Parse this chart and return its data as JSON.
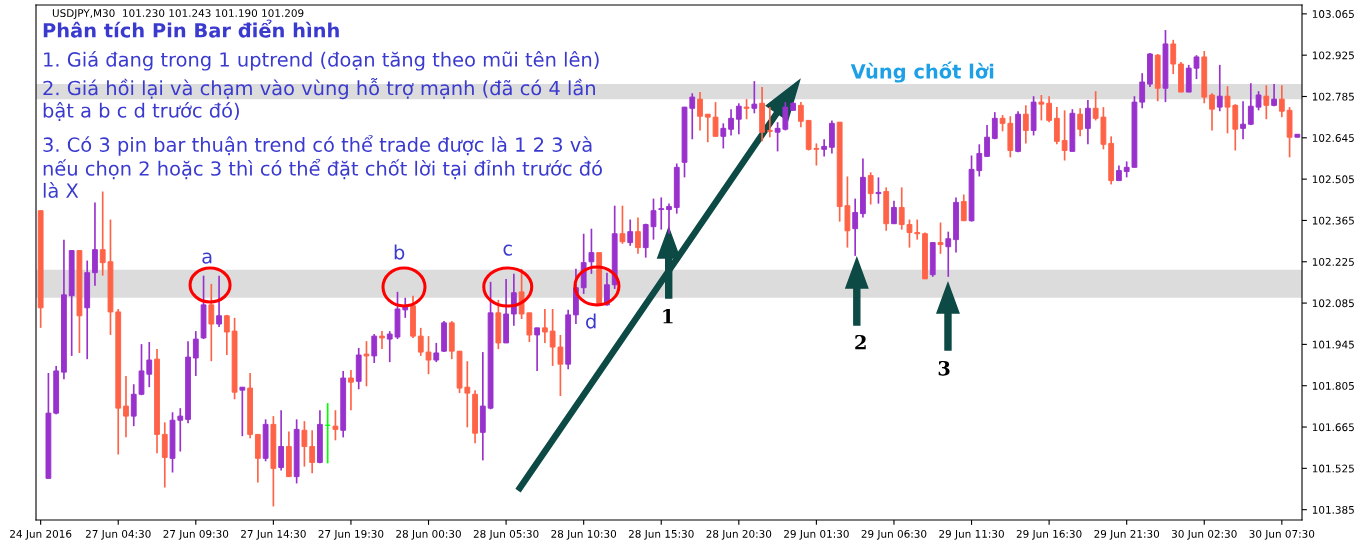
{
  "chart_data": {
    "type": "candlestick",
    "title": "Phân tích Pin Bar điển hình",
    "categories": [
      "24 Jun 2016",
      null,
      null,
      null,
      null,
      null,
      null,
      null,
      null,
      null,
      "27 Jun 04:30",
      null,
      null,
      null,
      null,
      null,
      null,
      null,
      null,
      null,
      "27 Jun 09:30",
      null,
      null,
      null,
      null,
      null,
      null,
      null,
      null,
      null,
      "27 Jun 14:30",
      null,
      null,
      null,
      null,
      null,
      null,
      null,
      null,
      null,
      "27 Jun 19:30",
      null,
      null,
      null,
      null,
      null,
      null,
      null,
      null,
      null,
      "28 Jun 00:30",
      null,
      null,
      null,
      null,
      null,
      null,
      null,
      null,
      null,
      "28 Jun 05:30",
      null,
      null,
      null,
      null,
      null,
      null,
      null,
      null,
      null,
      "28 Jun 10:30",
      null,
      null,
      null,
      null,
      null,
      null,
      null,
      null,
      null,
      "28 Jun 15:30",
      null,
      null,
      null,
      null,
      null,
      null,
      null,
      null,
      null,
      "28 Jun 20:30",
      null,
      null,
      null,
      null,
      null,
      null,
      null,
      null,
      null,
      "29 Jun 01:30",
      null,
      null,
      null,
      null,
      null,
      null,
      null,
      null,
      null,
      "29 Jun 06:30",
      null,
      null,
      null,
      null,
      null,
      null,
      null,
      null,
      null,
      "29 Jun 11:30",
      null,
      null,
      null,
      null,
      null,
      null,
      null,
      null,
      null,
      "29 Jun 16:30",
      null,
      null,
      null,
      null,
      null,
      null,
      null,
      null,
      null,
      "29 Jun 21:30",
      null,
      null,
      null,
      null,
      null,
      null,
      null,
      null,
      null,
      "30 Jun 02:30",
      null,
      null,
      null,
      null,
      null,
      null,
      null,
      null,
      null,
      "30 Jun 07:30",
      null,
      null
    ],
    "ohlc": [
      [
        102.398,
        102.398,
        102.001,
        102.069
      ],
      [
        101.491,
        101.848,
        101.491,
        101.712
      ],
      [
        101.712,
        101.872,
        101.708,
        101.855
      ],
      [
        101.851,
        102.3,
        101.827,
        102.113
      ],
      [
        102.11,
        102.263,
        101.906,
        102.263
      ],
      [
        102.263,
        102.263,
        101.916,
        102.042
      ],
      [
        102.069,
        102.229,
        101.895,
        102.188
      ],
      [
        102.188,
        102.426,
        102.144,
        102.266
      ],
      [
        102.266,
        102.463,
        102.178,
        102.222
      ],
      [
        102.225,
        102.368,
        101.977,
        102.055
      ],
      [
        102.055,
        102.065,
        101.572,
        101.729
      ],
      [
        101.736,
        101.838,
        101.63,
        101.702
      ],
      [
        101.702,
        101.81,
        101.668,
        101.776
      ],
      [
        101.776,
        101.946,
        101.773,
        101.855
      ],
      [
        101.844,
        101.953,
        101.8,
        101.892
      ],
      [
        101.895,
        101.929,
        101.576,
        101.64
      ],
      [
        101.64,
        101.681,
        101.46,
        101.562
      ],
      [
        101.559,
        101.715,
        101.511,
        101.688
      ],
      [
        101.688,
        101.729,
        101.582,
        101.702
      ],
      [
        101.691,
        101.956,
        101.678,
        101.902
      ],
      [
        101.899,
        101.99,
        101.838,
        101.963
      ],
      [
        101.967,
        102.178,
        101.963,
        102.079
      ],
      [
        102.079,
        102.15,
        101.888,
        102.014
      ],
      [
        102.014,
        102.178,
        102.004,
        102.042
      ],
      [
        102.042,
        102.045,
        101.909,
        101.987
      ],
      [
        101.99,
        102.035,
        101.759,
        101.783
      ],
      [
        101.79,
        101.8,
        101.634,
        101.8
      ],
      [
        101.797,
        101.848,
        101.627,
        101.64
      ],
      [
        101.64,
        101.64,
        101.477,
        101.559
      ],
      [
        101.559,
        101.691,
        101.549,
        101.674
      ],
      [
        101.674,
        101.702,
        101.396,
        101.525
      ],
      [
        101.528,
        101.722,
        101.518,
        101.599
      ],
      [
        101.599,
        101.65,
        101.497,
        101.497
      ],
      [
        101.497,
        101.691,
        101.474,
        101.657
      ],
      [
        101.654,
        101.685,
        101.531,
        101.599
      ],
      [
        101.599,
        101.654,
        101.508,
        101.545
      ],
      [
        101.545,
        101.722,
        101.542,
        101.674
      ],
      [
        101.671,
        101.746,
        101.542,
        101.671
      ],
      [
        101.668,
        101.722,
        101.62,
        101.657
      ],
      [
        101.654,
        101.855,
        101.63,
        101.831
      ],
      [
        101.831,
        101.858,
        101.722,
        101.817
      ],
      [
        101.82,
        101.933,
        101.793,
        101.909
      ],
      [
        101.912,
        101.956,
        101.803,
        101.906
      ],
      [
        101.906,
        101.98,
        101.882,
        101.973
      ],
      [
        101.973,
        101.99,
        101.929,
        101.967
      ],
      [
        101.963,
        101.99,
        101.885,
        101.98
      ],
      [
        101.97,
        102.123,
        101.963,
        102.065
      ],
      [
        102.062,
        102.103,
        102.035,
        102.076
      ],
      [
        102.076,
        102.11,
        101.967,
        101.973
      ],
      [
        101.973,
        102.001,
        101.906,
        101.919
      ],
      [
        101.919,
        101.973,
        101.844,
        101.892
      ],
      [
        101.892,
        101.95,
        101.885,
        101.916
      ],
      [
        101.922,
        102.024,
        101.919,
        102.018
      ],
      [
        102.018,
        102.024,
        101.895,
        101.922
      ],
      [
        101.922,
        101.922,
        101.78,
        101.797
      ],
      [
        101.8,
        101.888,
        101.664,
        101.78
      ],
      [
        101.776,
        101.79,
        101.61,
        101.644
      ],
      [
        101.647,
        101.919,
        101.552,
        101.736
      ],
      [
        101.729,
        102.157,
        101.725,
        102.052
      ],
      [
        102.052,
        102.096,
        101.929,
        101.95
      ],
      [
        101.95,
        102.167,
        101.95,
        102.048
      ],
      [
        102.048,
        102.184,
        102.008,
        102.12
      ],
      [
        102.123,
        102.201,
        102.031,
        102.048
      ],
      [
        102.052,
        102.052,
        101.953,
        101.977
      ],
      [
        101.977,
        102.001,
        101.855,
        102.001
      ],
      [
        102.001,
        102.065,
        101.95,
        101.987
      ],
      [
        101.99,
        102.065,
        101.872,
        101.936
      ],
      [
        101.936,
        101.977,
        101.77,
        101.878
      ],
      [
        101.878,
        102.062,
        101.861,
        102.045
      ],
      [
        102.045,
        102.201,
        102.014,
        102.137
      ],
      [
        102.137,
        102.32,
        102.116,
        102.222
      ],
      [
        102.225,
        102.337,
        102.184,
        102.256
      ],
      [
        102.256,
        102.256,
        102.076,
        102.079
      ],
      [
        102.079,
        102.188,
        102.076,
        102.147
      ],
      [
        102.147,
        102.415,
        102.133,
        102.32
      ],
      [
        102.32,
        102.415,
        102.286,
        102.293
      ],
      [
        102.29,
        102.368,
        102.279,
        102.327
      ],
      [
        102.327,
        102.375,
        102.252,
        102.273
      ],
      [
        102.273,
        102.354,
        102.239,
        102.351
      ],
      [
        102.344,
        102.439,
        102.3,
        102.398
      ],
      [
        102.402,
        102.443,
        102.334,
        102.405
      ],
      [
        102.402,
        102.422,
        102.32,
        102.412
      ],
      [
        102.409,
        102.558,
        102.388,
        102.545
      ],
      [
        102.562,
        102.749,
        102.511,
        102.749
      ],
      [
        102.745,
        102.796,
        102.64,
        102.783
      ],
      [
        102.776,
        102.8,
        102.67,
        102.718
      ],
      [
        102.725,
        102.725,
        102.63,
        102.715
      ],
      [
        102.715,
        102.766,
        102.65,
        102.65
      ],
      [
        102.65,
        102.694,
        102.609,
        102.677
      ],
      [
        102.674,
        102.742,
        102.653,
        102.711
      ],
      [
        102.708,
        102.762,
        102.657,
        102.752
      ],
      [
        102.749,
        102.776,
        102.708,
        102.745
      ],
      [
        102.745,
        102.837,
        102.728,
        102.759
      ],
      [
        102.762,
        102.817,
        102.633,
        102.664
      ],
      [
        102.67,
        102.749,
        102.647,
        102.667
      ],
      [
        102.664,
        102.698,
        102.599,
        102.677
      ],
      [
        102.674,
        102.766,
        102.67,
        102.749
      ],
      [
        102.738,
        102.766,
        102.738,
        102.762
      ],
      [
        102.755,
        102.766,
        102.681,
        102.701
      ],
      [
        102.704,
        102.704,
        102.602,
        102.606
      ],
      [
        102.609,
        102.626,
        102.551,
        102.606
      ],
      [
        102.606,
        102.64,
        102.582,
        102.616
      ],
      [
        102.613,
        102.704,
        102.592,
        102.694
      ],
      [
        102.698,
        102.698,
        102.361,
        102.412
      ],
      [
        102.415,
        102.514,
        102.273,
        102.33
      ],
      [
        102.337,
        102.439,
        102.245,
        102.392
      ],
      [
        102.388,
        102.575,
        102.375,
        102.511
      ],
      [
        102.517,
        102.528,
        102.419,
        102.456
      ],
      [
        102.456,
        102.511,
        102.422,
        102.46
      ],
      [
        102.463,
        102.477,
        102.33,
        102.354
      ],
      [
        102.354,
        102.432,
        102.354,
        102.409
      ],
      [
        102.409,
        102.477,
        102.334,
        102.351
      ],
      [
        102.351,
        102.368,
        102.273,
        102.324
      ],
      [
        102.324,
        102.368,
        102.3,
        102.32
      ],
      [
        102.32,
        102.324,
        102.167,
        102.167
      ],
      [
        102.181,
        102.29,
        102.174,
        102.29
      ],
      [
        102.29,
        102.358,
        102.252,
        102.283
      ],
      [
        102.276,
        102.327,
        102.174,
        102.303
      ],
      [
        102.3,
        102.443,
        102.256,
        102.426
      ],
      [
        102.429,
        102.453,
        102.364,
        102.364
      ],
      [
        102.364,
        102.585,
        102.361,
        102.538
      ],
      [
        102.534,
        102.623,
        102.514,
        102.592
      ],
      [
        102.582,
        102.688,
        102.582,
        102.647
      ],
      [
        102.643,
        102.732,
        102.64,
        102.711
      ],
      [
        102.711,
        102.722,
        102.667,
        102.694
      ],
      [
        102.694,
        102.718,
        102.579,
        102.602
      ],
      [
        102.599,
        102.735,
        102.596,
        102.725
      ],
      [
        102.725,
        102.755,
        102.626,
        102.67
      ],
      [
        102.67,
        102.786,
        102.653,
        102.766
      ],
      [
        102.766,
        102.79,
        102.704,
        102.759
      ],
      [
        102.762,
        102.786,
        102.698,
        102.704
      ],
      [
        102.711,
        102.749,
        102.623,
        102.633
      ],
      [
        102.636,
        102.738,
        102.568,
        102.602
      ],
      [
        102.599,
        102.742,
        102.599,
        102.728
      ],
      [
        102.725,
        102.745,
        102.65,
        102.674
      ],
      [
        102.677,
        102.773,
        102.623,
        102.745
      ],
      [
        102.745,
        102.803,
        102.704,
        102.711
      ],
      [
        102.715,
        102.749,
        102.606,
        102.623
      ],
      [
        102.626,
        102.65,
        102.487,
        102.5
      ],
      [
        102.5,
        102.551,
        102.5,
        102.534
      ],
      [
        102.531,
        102.565,
        102.511,
        102.545
      ],
      [
        102.545,
        102.786,
        102.545,
        102.766
      ],
      [
        102.766,
        102.864,
        102.745,
        102.834
      ],
      [
        102.827,
        102.932,
        102.817,
        102.929
      ],
      [
        102.925,
        102.929,
        102.769,
        102.813
      ],
      [
        102.813,
        103.01,
        102.766,
        102.963
      ],
      [
        102.963,
        102.977,
        102.861,
        102.895
      ],
      [
        102.895,
        102.902,
        102.8,
        102.8
      ],
      [
        102.8,
        102.892,
        102.8,
        102.881
      ],
      [
        102.881,
        102.925,
        102.844,
        102.919
      ],
      [
        102.919,
        102.939,
        102.762,
        102.783
      ],
      [
        102.79,
        102.796,
        102.67,
        102.742
      ],
      [
        102.749,
        102.892,
        102.735,
        102.786
      ],
      [
        102.786,
        102.82,
        102.66,
        102.749
      ],
      [
        102.755,
        102.759,
        102.602,
        102.674
      ],
      [
        102.677,
        102.769,
        102.64,
        102.691
      ],
      [
        102.691,
        102.83,
        102.688,
        102.752
      ],
      [
        102.749,
        102.803,
        102.738,
        102.79
      ],
      [
        102.786,
        102.823,
        102.708,
        102.755
      ],
      [
        102.755,
        102.827,
        102.752,
        102.776
      ],
      [
        102.776,
        102.823,
        102.715,
        102.735
      ],
      [
        102.738,
        102.749,
        102.579,
        102.647
      ],
      [
        102.647,
        102.657,
        102.647,
        102.657
      ]
    ],
    "colors": [
      "#ff6347",
      "#9932cc",
      "#9932cc",
      "#9932cc",
      "#9932cc",
      "#ff6347",
      "#9932cc",
      "#9932cc",
      "#ff6347",
      "#ff6347",
      "#ff6347",
      "#ff6347",
      "#9932cc",
      "#9932cc",
      "#9932cc",
      "#ff6347",
      "#ff6347",
      "#9932cc",
      "#9932cc",
      "#9932cc",
      "#9932cc",
      "#9932cc",
      "#ff6347",
      "#9932cc",
      "#ff6347",
      "#ff6347",
      "#9932cc",
      "#ff6347",
      "#ff6347",
      "#9932cc",
      "#ff6347",
      "#9932cc",
      "#ff6347",
      "#9932cc",
      "#ff6347",
      "#ff6347",
      "#9932cc",
      "#00ff00",
      "#ff6347",
      "#9932cc",
      "#ff6347",
      "#9932cc",
      "#ff6347",
      "#9932cc",
      "#ff6347",
      "#9932cc",
      "#9932cc",
      "#9932cc",
      "#ff6347",
      "#ff6347",
      "#ff6347",
      "#9932cc",
      "#9932cc",
      "#ff6347",
      "#ff6347",
      "#ff6347",
      "#ff6347",
      "#9932cc",
      "#9932cc",
      "#ff6347",
      "#9932cc",
      "#9932cc",
      "#ff6347",
      "#ff6347",
      "#9932cc",
      "#ff6347",
      "#ff6347",
      "#ff6347",
      "#9932cc",
      "#9932cc",
      "#9932cc",
      "#9932cc",
      "#ff6347",
      "#9932cc",
      "#9932cc",
      "#ff6347",
      "#9932cc",
      "#ff6347",
      "#9932cc",
      "#9932cc",
      "#9932cc",
      "#9932cc",
      "#9932cc",
      "#9932cc",
      "#9932cc",
      "#ff6347",
      "#ff6347",
      "#ff6347",
      "#9932cc",
      "#9932cc",
      "#9932cc",
      "#ff6347",
      "#9932cc",
      "#ff6347",
      "#ff6347",
      "#9932cc",
      "#9932cc",
      "#9932cc",
      "#ff6347",
      "#ff6347",
      "#ff6347",
      "#9932cc",
      "#9932cc",
      "#ff6347",
      "#ff6347",
      "#9932cc",
      "#9932cc",
      "#ff6347",
      "#9932cc",
      "#ff6347",
      "#9932cc",
      "#ff6347",
      "#ff6347",
      "#ff6347",
      "#ff6347",
      "#9932cc",
      "#ff6347",
      "#9932cc",
      "#9932cc",
      "#ff6347",
      "#9932cc",
      "#9932cc",
      "#9932cc",
      "#9932cc",
      "#ff6347",
      "#ff6347",
      "#9932cc",
      "#ff6347",
      "#9932cc",
      "#ff6347",
      "#ff6347",
      "#ff6347",
      "#ff6347",
      "#9932cc",
      "#ff6347",
      "#9932cc",
      "#ff6347",
      "#ff6347",
      "#ff6347",
      "#9932cc",
      "#9932cc",
      "#9932cc",
      "#9932cc",
      "#9932cc",
      "#ff6347",
      "#9932cc",
      "#ff6347",
      "#ff6347",
      "#9932cc",
      "#9932cc",
      "#ff6347",
      "#ff6347",
      "#9932cc",
      "#ff6347",
      "#ff6347",
      "#9932cc",
      "#9932cc",
      "#9932cc",
      "#ff6347",
      "#9932cc",
      "#ff6347",
      "#ff6347",
      "#9932cc"
    ],
    "ylim": [
      101.35,
      103.095
    ],
    "yticks": [
      103.065,
      102.925,
      102.785,
      102.645,
      102.505,
      102.365,
      102.225,
      102.085,
      101.945,
      101.805,
      101.665,
      101.525,
      101.385
    ],
    "bands": [
      {
        "axis": "y",
        "from": 102.103,
        "to": 102.198,
        "color": "#dcdcdc"
      },
      {
        "axis": "y",
        "from": 102.776,
        "to": 102.827,
        "color": "#dcdcdc",
        "label": "Vùng chốt lời"
      }
    ],
    "annotations": [
      "USDJPY,M30  101.230 101.243 101.190 101.209",
      "1. Giá đang trong 1 uptrend (đoạn tăng theo mũi tên lên)",
      "2. Giá hồi lại và chạm vào vùng hỗ trợ mạnh (đã có 4 lần\nbật a b c d trước đó)",
      "3. Có 3 pin bar thuận trend có thể trade được là 1 2 3 và\nnếu chọn 2 hoặc 3 thì có thể đặt chốt lời tại đỉnh trước đó\nlà X",
      "a",
      "b",
      "c",
      "d",
      "1",
      "2",
      "3"
    ]
  }
}
